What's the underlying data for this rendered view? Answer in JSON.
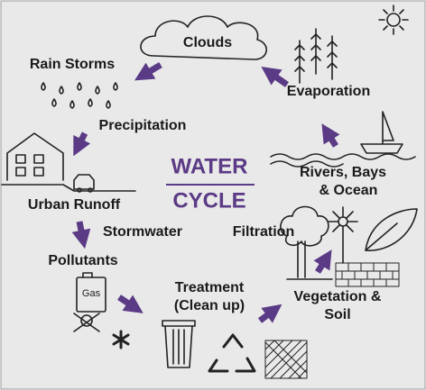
{
  "title": {
    "lines": [
      "WATER",
      "CYCLE"
    ]
  },
  "nodes": [
    {
      "lines": [
        "Clouds"
      ]
    },
    {
      "lines": [
        "Rain Storms"
      ]
    },
    {
      "lines": [
        "Precipitation"
      ]
    },
    {
      "lines": [
        "Urban Runoff"
      ]
    },
    {
      "lines": [
        "Stormwater"
      ]
    },
    {
      "lines": [
        "Pollutants"
      ]
    },
    {
      "lines": [
        "Gas"
      ]
    },
    {
      "lines": [
        "Treatment",
        "(Clean up)"
      ]
    },
    {
      "lines": [
        "Filtration"
      ]
    },
    {
      "lines": [
        "Vegetation &",
        "Soil"
      ]
    },
    {
      "lines": [
        "Rivers, Bays",
        "& Ocean"
      ]
    },
    {
      "lines": [
        "Evaporation"
      ]
    }
  ]
}
